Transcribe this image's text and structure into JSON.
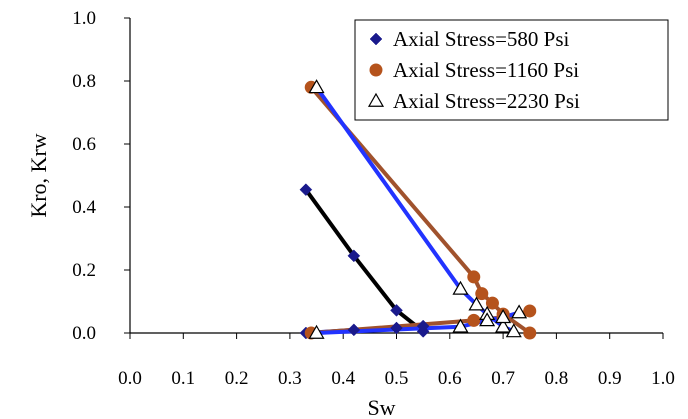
{
  "chart_data": {
    "type": "scatter",
    "xlabel": "Sw",
    "ylabel": "Kro, Krw",
    "xlim": [
      0.0,
      1.0
    ],
    "ylim": [
      0.0,
      1.0
    ],
    "x_ticks": [
      "0.0",
      "0.1",
      "0.2",
      "0.3",
      "0.4",
      "0.5",
      "0.6",
      "0.7",
      "0.8",
      "0.9",
      "1.0"
    ],
    "y_ticks": [
      "0.0",
      "0.2",
      "0.4",
      "0.6",
      "0.8",
      "1.0"
    ],
    "grid": false,
    "legend_position": "top-right",
    "series": [
      {
        "name": "Axial Stress=580 Psi",
        "marker": "diamond",
        "marker_color": "#1a1a8c",
        "kro_line_color": "#000000",
        "krw_line_color": "#1a1aa8",
        "kro": [
          [
            0.33,
            0.455
          ],
          [
            0.42,
            0.245
          ],
          [
            0.5,
            0.072
          ],
          [
            0.55,
            0.005
          ]
        ],
        "krw": [
          [
            0.33,
            0.0
          ],
          [
            0.42,
            0.01
          ],
          [
            0.5,
            0.016
          ],
          [
            0.55,
            0.022
          ]
        ]
      },
      {
        "name": "Axial Stress=1160 Psi",
        "marker": "circle",
        "marker_color": "#b5531c",
        "kro_line_color": "#a0522d",
        "krw_line_color": "#a0522d",
        "kro": [
          [
            0.34,
            0.78
          ],
          [
            0.645,
            0.178
          ],
          [
            0.66,
            0.125
          ],
          [
            0.68,
            0.095
          ],
          [
            0.7,
            0.06
          ],
          [
            0.75,
            0.0
          ]
        ],
        "krw": [
          [
            0.34,
            0.0
          ],
          [
            0.645,
            0.04
          ],
          [
            0.7,
            0.05
          ],
          [
            0.75,
            0.07
          ]
        ]
      },
      {
        "name": "Axial Stress=2230 Psi",
        "marker": "triangle",
        "marker_color": "#000000",
        "kro_line_color": "#2233ff",
        "krw_line_color": "#2233ff",
        "kro": [
          [
            0.35,
            0.78
          ],
          [
            0.62,
            0.14
          ],
          [
            0.65,
            0.09
          ],
          [
            0.67,
            0.06
          ],
          [
            0.7,
            0.02
          ],
          [
            0.72,
            0.005
          ]
        ],
        "krw": [
          [
            0.35,
            0.0
          ],
          [
            0.62,
            0.02
          ],
          [
            0.67,
            0.04
          ],
          [
            0.7,
            0.05
          ],
          [
            0.73,
            0.065
          ]
        ]
      }
    ]
  }
}
